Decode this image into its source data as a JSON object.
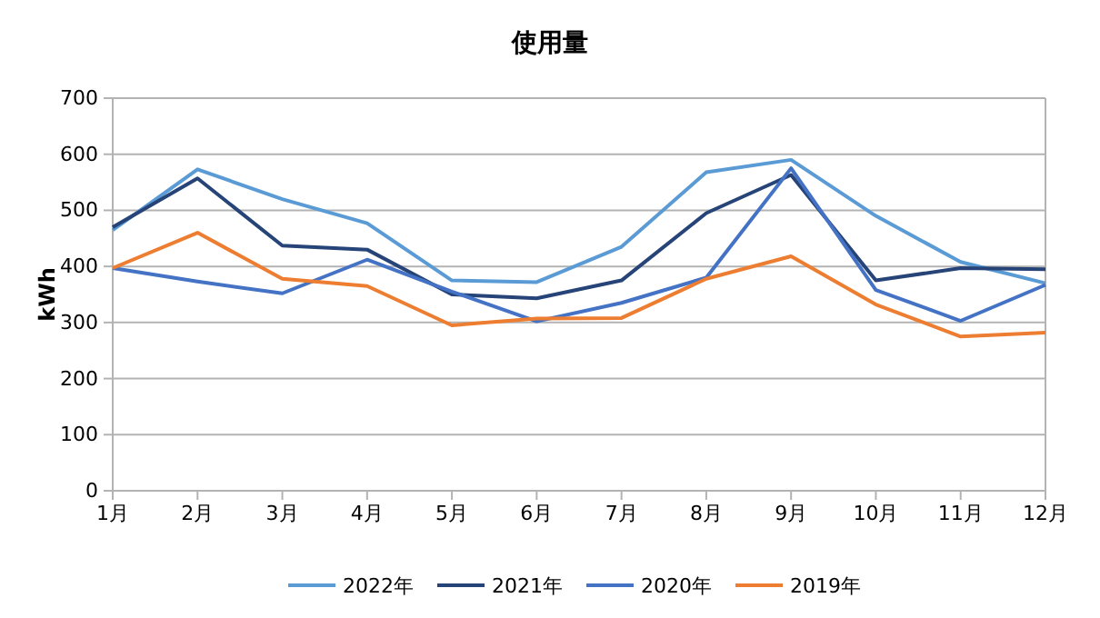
{
  "chart_data": {
    "type": "line",
    "title": "使用量",
    "ylabel": "kWh",
    "categories": [
      "1月",
      "2月",
      "3月",
      "4月",
      "5月",
      "6月",
      "7月",
      "8月",
      "9月",
      "10月",
      "11月",
      "12月"
    ],
    "series": [
      {
        "name": "2022年",
        "color": "#5b9bd5",
        "values": [
          465,
          573,
          520,
          477,
          375,
          372,
          435,
          568,
          590,
          490,
          408,
          370
        ]
      },
      {
        "name": "2021年",
        "color": "#264478",
        "values": [
          470,
          557,
          437,
          430,
          350,
          343,
          375,
          495,
          563,
          375,
          397,
          395
        ]
      },
      {
        "name": "2020年",
        "color": "#4472c4",
        "values": [
          397,
          373,
          352,
          412,
          355,
          302,
          335,
          380,
          575,
          358,
          303,
          367
        ]
      },
      {
        "name": "2019年",
        "color": "#ed7d31",
        "values": [
          397,
          460,
          378,
          365,
          295,
          307,
          308,
          378,
          418,
          332,
          275,
          282
        ]
      }
    ],
    "ylim": [
      0,
      700
    ],
    "yticks": [
      0,
      100,
      200,
      300,
      400,
      500,
      600,
      700
    ],
    "grid": "y",
    "legend": "bottom",
    "marker": "none",
    "line_style": "solid"
  }
}
